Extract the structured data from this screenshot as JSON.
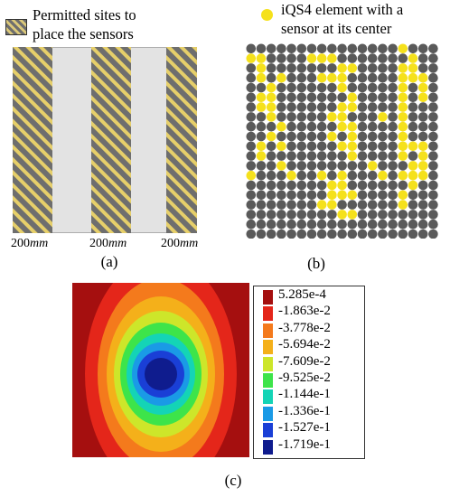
{
  "legend_a": {
    "text": "Permitted sites to\nplace the sensors",
    "hatch_colors": [
      "#6e6e6e",
      "#dcc97a"
    ]
  },
  "legend_b": {
    "text": "iQS4 element with a\nsensor at its center",
    "color": "#f5e11c"
  },
  "panel_a": {
    "dimensions": [
      {
        "value": "200",
        "unit": "mm"
      },
      {
        "value": "200",
        "unit": "mm"
      },
      {
        "value": "200",
        "unit": "mm"
      }
    ],
    "caption": "(a)",
    "colors": {
      "hatch_dark": "#6e6e6e",
      "hatch_light": "#e6cf6a",
      "gap": "#e3e3e3"
    }
  },
  "panel_b": {
    "caption": "(b)",
    "colors": {
      "sensor": "#f5e11c",
      "element": "#5a5a5a"
    },
    "grid_rows": [
      "0000000000000001000",
      "1100001110000000100",
      "0100000001100001100",
      "0101000111000001110",
      "0010000001000001010",
      "0110000000100001010",
      "0110000001100001000",
      "0010000011000101000",
      "0001000001100001000",
      "0010000010100001000",
      "0101000001100001110",
      "0100000000100001010",
      "0001000000001000110",
      "1000100101000101110",
      "0000000011000000100",
      "0000000011100001000",
      "0000000110000001000",
      "0000000001100000000",
      "0000000000000000000",
      "0000000000000000000"
    ]
  },
  "panel_c": {
    "caption": "(c)",
    "levels": [
      {
        "label": "5.285e-4",
        "color": "#a50f0f"
      },
      {
        "label": "-1.863e-2",
        "color": "#e4261a"
      },
      {
        "label": "-3.778e-2",
        "color": "#f47a1c"
      },
      {
        "label": "-5.694e-2",
        "color": "#f4b01a"
      },
      {
        "label": "-7.609e-2",
        "color": "#cde62a"
      },
      {
        "label": "-9.525e-2",
        "color": "#3de44a"
      },
      {
        "label": "-1.144e-1",
        "color": "#14d4b6"
      },
      {
        "label": "-1.336e-1",
        "color": "#1a9ae6"
      },
      {
        "label": "-1.527e-1",
        "color": "#1a3fd6"
      },
      {
        "label": "-1.719e-1",
        "color": "#0f1c8e"
      }
    ]
  }
}
